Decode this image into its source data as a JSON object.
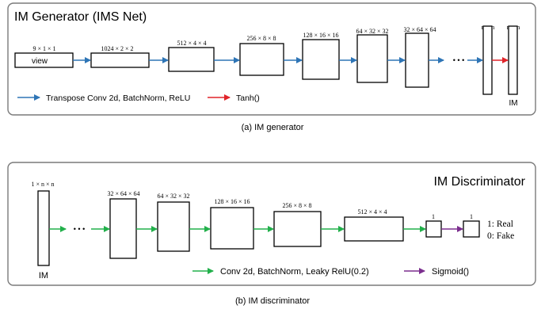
{
  "generator": {
    "title": "IM Generator (IMS Net)",
    "caption": "(a) IM generator",
    "view_label": "view",
    "shapes": [
      "9 × 1 × 1",
      "1024 × 2 × 2",
      "512 × 4 × 4",
      "256 × 8 × 8",
      "128 × 16 × 16",
      "64 × 32 × 32",
      "32 × 64 × 64",
      "n × n",
      "n × n"
    ],
    "ellipsis": "• • •",
    "output_label": "IM",
    "legend": [
      {
        "label": "Transpose Conv 2d, BatchNorm, ReLU",
        "color": "#2e75b6"
      },
      {
        "label": "Tanh()",
        "color": "#e0242a"
      }
    ]
  },
  "discriminator": {
    "title": "IM Discriminator",
    "caption": "(b) IM discriminator",
    "input_label": "IM",
    "shapes": [
      "1 × n × n",
      "32 × 64 × 64",
      "64 × 32 × 32",
      "128 × 16 × 16",
      "256 × 8 × 8",
      "512 × 4 × 4",
      "1",
      "1"
    ],
    "ellipsis": "• • •",
    "output_real": "1: Real",
    "output_fake": "0: Fake",
    "legend": [
      {
        "label": "Conv 2d, BatchNorm, Leaky RelU(0.2)",
        "color": "#22b04b"
      },
      {
        "label": "Sigmoid()",
        "color": "#7b2e8e"
      }
    ]
  }
}
